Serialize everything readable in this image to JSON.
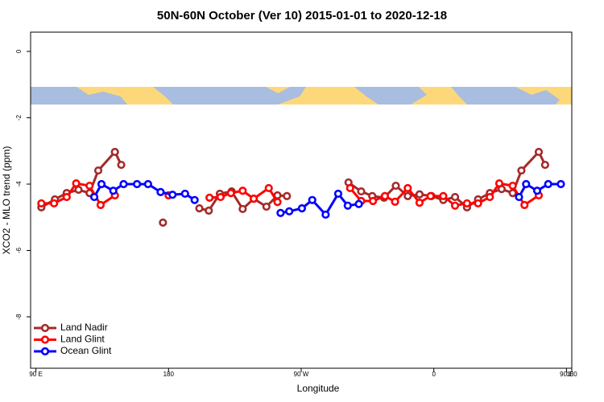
{
  "chart_data": {
    "type": "line",
    "title": "50N-60N October (Ver 10)   2015-01-01 to 2020-12-18",
    "x_label": "Longitude",
    "y_label": "XCO2 - MLO trend (ppm)",
    "xlim": [
      86.4,
      453.6
    ],
    "ylim": [
      -9.55,
      0.58
    ],
    "xticks": [
      {
        "value": 90,
        "label": "90 E"
      },
      {
        "value": 180,
        "label": "180"
      },
      {
        "value": 270,
        "label": "90 W"
      },
      {
        "value": 360,
        "label": "0"
      },
      {
        "value": 450,
        "label": "90 E"
      },
      {
        "value": 540,
        "label": "180"
      }
    ],
    "yticks": [
      0,
      -2,
      -4,
      -6,
      -8
    ],
    "legend": "bottom-left",
    "series": [
      {
        "name": "Land Nadir",
        "color": "#a52a2a",
        "x": [
          93.7,
          102.9,
          110.9,
          118.9,
          126.4,
          132.3,
          143.6,
          147.9,
          null,
          176.2,
          null,
          200.9,
          207.3,
          214.8,
          222.8,
          230.3,
          237.8,
          246.4,
          253.9,
          260.3,
          null,
          302.1,
          310.7,
          318.2,
          326.2,
          334.2,
          342.3,
          350.3,
          358.4,
          366.4,
          374.4,
          382.5,
          390.0,
          398.0,
          406.0,
          413.5,
          419.4,
          431.2,
          435.5
        ],
        "values": [
          -4.7,
          -4.46,
          -4.27,
          -4.17,
          -4.27,
          -3.59,
          -3.03,
          -3.42,
          null,
          -5.16,
          null,
          -4.73,
          -4.8,
          -4.29,
          -4.22,
          -4.75,
          -4.44,
          -4.68,
          -4.34,
          -4.36,
          null,
          -3.95,
          -4.22,
          -4.36,
          -4.41,
          -4.05,
          -4.36,
          -4.31,
          -4.36,
          -4.48,
          -4.39,
          -4.7,
          -4.46,
          -4.27,
          -4.15,
          -4.27,
          -3.59,
          -3.03,
          -3.42
        ]
      },
      {
        "name": "Land Glint",
        "color": "#ff0000",
        "x": [
          93.7,
          102.3,
          110.9,
          117.3,
          126.4,
          133.9,
          143.6,
          null,
          180.0,
          null,
          207.8,
          215.3,
          222.3,
          230.3,
          237.8,
          248.0,
          253.9,
          null,
          303.2,
          310.7,
          318.7,
          326.8,
          333.7,
          342.3,
          350.3,
          357.8,
          366.4,
          374.4,
          382.5,
          390.0,
          398.0,
          404.4,
          413.5,
          421.5,
          431.2
        ],
        "values": [
          -4.58,
          -4.58,
          -4.39,
          -3.98,
          -4.05,
          -4.63,
          -4.34,
          null,
          -4.34,
          null,
          -4.41,
          -4.39,
          -4.27,
          -4.2,
          -4.44,
          -4.12,
          -4.54,
          null,
          -4.12,
          -4.51,
          -4.51,
          -4.36,
          -4.53,
          -4.12,
          -4.56,
          -4.36,
          -4.36,
          -4.65,
          -4.58,
          -4.58,
          -4.39,
          -3.98,
          -4.05,
          -4.63,
          -4.34
        ]
      },
      {
        "name": "Ocean Glint",
        "color": "#0000ff",
        "x": [
          129.6,
          134.5,
          142.5,
          149.5,
          158.6,
          166.1,
          174.6,
          182.7,
          191.2,
          197.7,
          null,
          256.0,
          261.9,
          270.5,
          277.5,
          286.6,
          295.1,
          301.6,
          309.1,
          null,
          417.8,
          422.6,
          430.1,
          437.6,
          446.2
        ],
        "values": [
          -4.39,
          -4.0,
          -4.2,
          -4.0,
          -4.0,
          -4.0,
          -4.24,
          -4.32,
          -4.29,
          -4.48,
          null,
          -4.87,
          -4.82,
          -4.73,
          -4.48,
          -4.92,
          -4.29,
          -4.65,
          -4.6,
          null,
          -4.39,
          -4.0,
          -4.2,
          -4.0,
          -4.0
        ]
      }
    ]
  }
}
